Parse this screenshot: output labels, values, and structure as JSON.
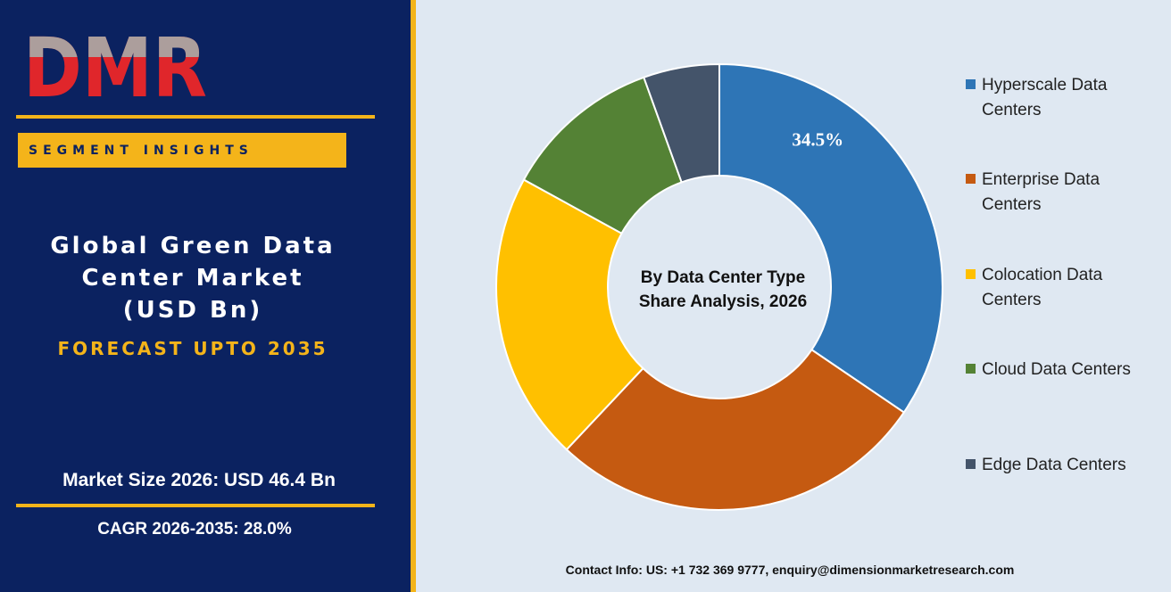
{
  "logo": {
    "text": "DMR",
    "colors": {
      "red": "#e0262b",
      "grey": "#a3b3b0"
    }
  },
  "sidebar": {
    "segment_label": "SEGMENT INSIGHTS",
    "title_lines": [
      "Global Green Data",
      "Center Market",
      "(USD Bn)"
    ],
    "forecast": "FORECAST UPTO 2035",
    "market_size": "Market Size 2026: USD 46.4 Bn",
    "cagr": "CAGR 2026-2035: 28.0%"
  },
  "colors": {
    "navy": "#0b2260",
    "gold": "#f4b41a",
    "chart_bg": "#dfe8f2"
  },
  "chart_data": {
    "type": "pie",
    "variant": "donut",
    "center_lines": [
      "By Data Center Type",
      "Share Analysis, 2026"
    ],
    "categories": [
      "Hyperscale Data Centers",
      "Enterprise Data Centers",
      "Colocation Data Centers",
      "Cloud Data Centers",
      "Edge Data Centers"
    ],
    "values": [
      34.5,
      27.5,
      21.0,
      11.5,
      5.5
    ],
    "colors": [
      "#2e75b6",
      "#c55a11",
      "#ffc000",
      "#548235",
      "#44546a"
    ],
    "data_labels": [
      "34.5%",
      "",
      "",
      "",
      ""
    ],
    "legend_position": "right"
  },
  "contact": "Contact Info: US: +1 732 369 9777, enquiry@dimensionmarketresearch.com"
}
